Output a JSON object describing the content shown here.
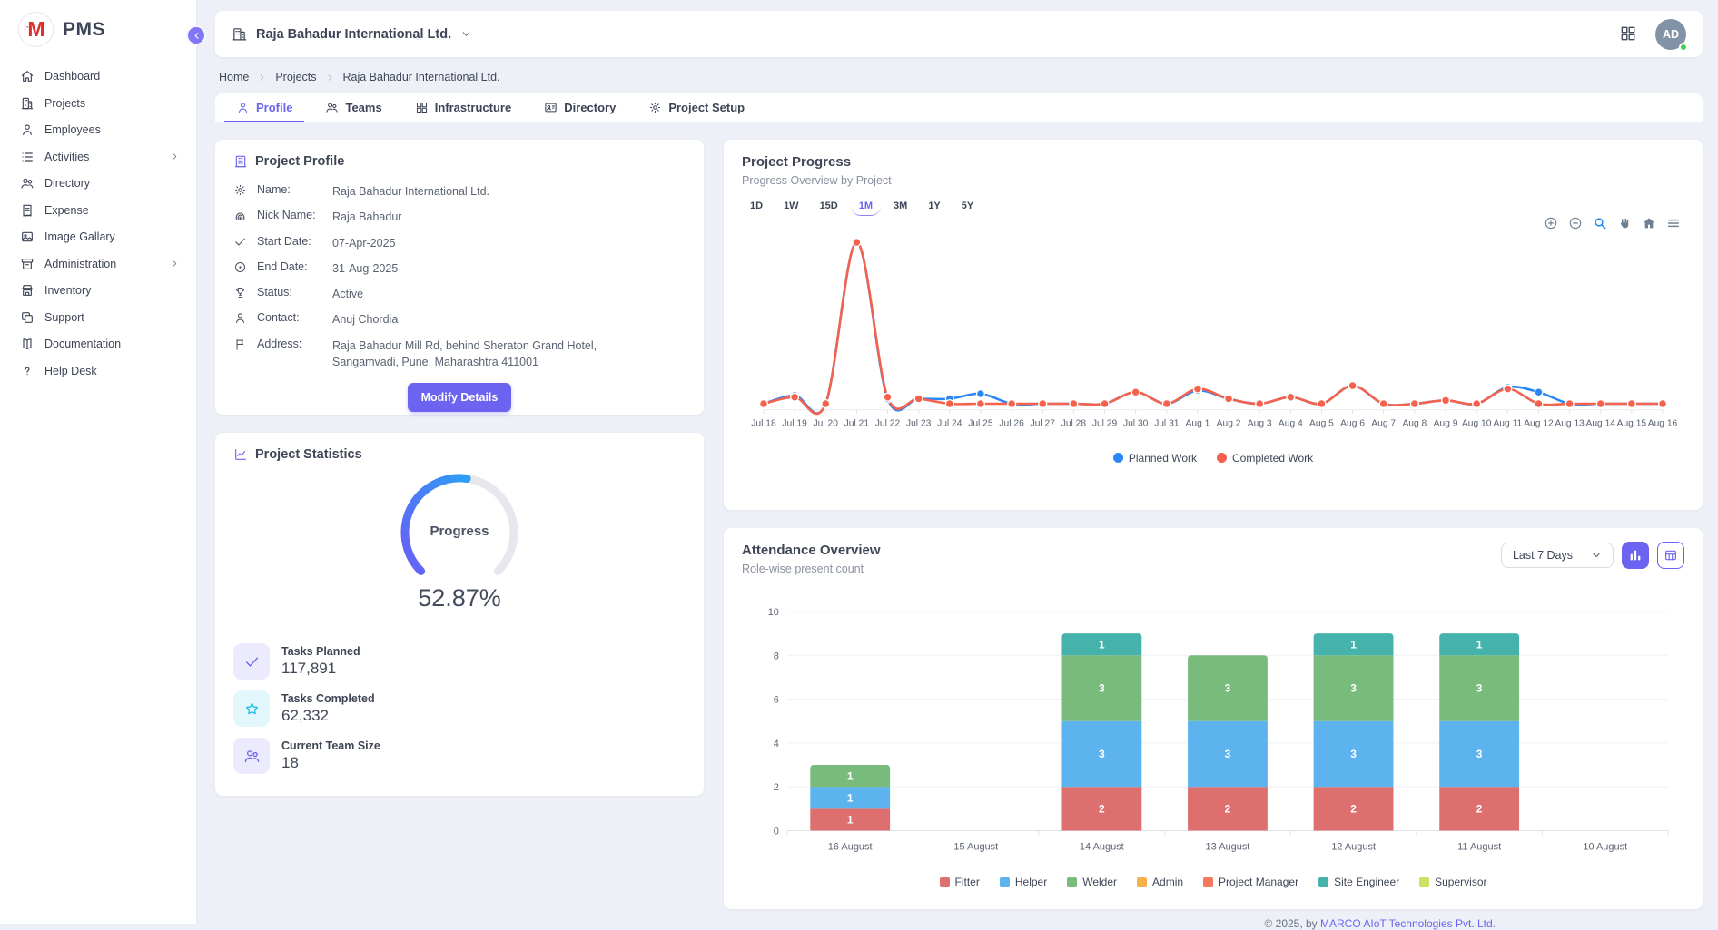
{
  "app": {
    "logo_text": "PMS",
    "footer_prefix": "© 2025, by ",
    "footer_link": "MARCO AIoT Technologies Pvt. Ltd."
  },
  "header": {
    "project_selector": "Raja Bahadur International Ltd.",
    "avatar_initials": "AD"
  },
  "sidebar": {
    "items": [
      {
        "label": "Dashboard",
        "icon": "home",
        "has_children": false
      },
      {
        "label": "Projects",
        "icon": "building",
        "has_children": false
      },
      {
        "label": "Employees",
        "icon": "user",
        "has_children": false
      },
      {
        "label": "Activities",
        "icon": "list",
        "has_children": true
      },
      {
        "label": "Directory",
        "icon": "users",
        "has_children": false
      },
      {
        "label": "Expense",
        "icon": "receipt",
        "has_children": false
      },
      {
        "label": "Image Gallary",
        "icon": "image",
        "has_children": false
      },
      {
        "label": "Administration",
        "icon": "archive",
        "has_children": true
      },
      {
        "label": "Inventory",
        "icon": "store",
        "has_children": false
      },
      {
        "label": "Support",
        "icon": "copy",
        "has_children": false
      },
      {
        "label": "Documentation",
        "icon": "book",
        "has_children": false
      },
      {
        "label": "Help Desk",
        "icon": "help",
        "has_children": false
      }
    ]
  },
  "breadcrumb": [
    "Home",
    "Projects",
    "Raja Bahadur International Ltd."
  ],
  "tabs": [
    {
      "label": "Profile",
      "icon": "user",
      "active": true
    },
    {
      "label": "Teams",
      "icon": "users",
      "active": false
    },
    {
      "label": "Infrastructure",
      "icon": "grid4",
      "active": false
    },
    {
      "label": "Directory",
      "icon": "contact-card",
      "active": false
    },
    {
      "label": "Project Setup",
      "icon": "gear",
      "active": false
    }
  ],
  "profile_card": {
    "title": "Project Profile",
    "fields": [
      {
        "icon": "gear",
        "label": "Name:",
        "value": "Raja Bahadur International Ltd."
      },
      {
        "icon": "fingerprint",
        "label": "Nick Name:",
        "value": "Raja Bahadur"
      },
      {
        "icon": "check",
        "label": "Start Date:",
        "value": "07-Apr-2025"
      },
      {
        "icon": "circle-dot",
        "label": "End Date:",
        "value": "31-Aug-2025"
      },
      {
        "icon": "trophy",
        "label": "Status:",
        "value": "Active"
      },
      {
        "icon": "user",
        "label": "Contact:",
        "value": "Anuj Chordia"
      },
      {
        "icon": "flag",
        "label": "Address:",
        "value": "Raja Bahadur Mill Rd, behind Sheraton Grand Hotel, Sangamvadi, Pune, Maharashtra 411001"
      }
    ],
    "button_label": "Modify Details"
  },
  "stats_card": {
    "title": "Project Statistics",
    "gauge": {
      "label": "Progress",
      "value_text": "52.87%",
      "percent": 52.87,
      "color_start": "#6a5ef5",
      "color_end": "#2e9df5",
      "track_color": "#e6e8ee"
    },
    "stats": [
      {
        "icon": "check",
        "tint": "purple",
        "label": "Tasks Planned",
        "value": "117,891"
      },
      {
        "icon": "star",
        "tint": "cyan",
        "label": "Tasks Completed",
        "value": "62,332"
      },
      {
        "icon": "users",
        "tint": "purple",
        "label": "Current Team Size",
        "value": "18"
      }
    ]
  },
  "progress_card": {
    "title": "Project Progress",
    "subtitle": "Progress Overview by Project",
    "ranges": [
      "1D",
      "1W",
      "15D",
      "1M",
      "3M",
      "1Y",
      "5Y"
    ],
    "active_range": "1M",
    "toolbar_icons": [
      "zoom-in",
      "zoom-out",
      "selection-zoom",
      "pan",
      "home",
      "menu"
    ]
  },
  "attendance_card": {
    "title": "Attendance Overview",
    "subtitle": "Role-wise present count",
    "filter_value": "Last 7 Days",
    "view_toggles": [
      "bar-chart",
      "table"
    ]
  },
  "chart_data": [
    {
      "id": "project-progress",
      "type": "line",
      "title": "Project Progress",
      "subtitle": "Progress Overview by Project",
      "x": [
        "Jul 18",
        "Jul 19",
        "Jul 20",
        "Jul 21",
        "Jul 22",
        "Jul 23",
        "Jul 24",
        "Jul 25",
        "Jul 26",
        "Jul 27",
        "Jul 28",
        "Jul 29",
        "Jul 30",
        "Jul 31",
        "Aug 1",
        "Aug 2",
        "Aug 3",
        "Aug 4",
        "Aug 5",
        "Aug 6",
        "Aug 7",
        "Aug 8",
        "Aug 9",
        "Aug 10",
        "Aug 11",
        "Aug 12",
        "Aug 13",
        "Aug 14",
        "Aug 15",
        "Aug 16"
      ],
      "series": [
        {
          "name": "Planned Work",
          "color": "#2b87f5",
          "values": [
            2,
            7,
            2,
            100,
            5,
            5,
            5,
            8,
            2,
            2,
            2,
            2,
            9,
            2,
            10,
            5,
            2,
            6,
            2,
            13,
            2,
            2,
            4,
            2,
            12,
            9,
            2,
            2,
            2,
            2
          ]
        },
        {
          "name": "Completed Work",
          "color": "#f4624d",
          "values": [
            2,
            6,
            2,
            100,
            6,
            5,
            2,
            2,
            2,
            2,
            2,
            2,
            9,
            2,
            11,
            5,
            2,
            6,
            2,
            13,
            2,
            2,
            4,
            2,
            11,
            2,
            2,
            2,
            2,
            2
          ]
        }
      ],
      "ylim": [
        0,
        105
      ],
      "grid": false,
      "legend_position": "bottom"
    },
    {
      "id": "attendance-overview",
      "type": "bar",
      "stacked": true,
      "title": "Attendance Overview",
      "subtitle": "Role-wise present count",
      "categories": [
        "16 August",
        "15 August",
        "14 August",
        "13 August",
        "12 August",
        "11 August",
        "10 August"
      ],
      "series": [
        {
          "name": "Fitter",
          "color": "#dd6f6f",
          "values": [
            1,
            0,
            2,
            2,
            2,
            2,
            0
          ]
        },
        {
          "name": "Helper",
          "color": "#5cb3ee",
          "values": [
            1,
            0,
            3,
            3,
            3,
            3,
            0
          ]
        },
        {
          "name": "Welder",
          "color": "#79bb7d",
          "values": [
            1,
            0,
            3,
            3,
            3,
            3,
            0
          ]
        },
        {
          "name": "Admin",
          "color": "#f8b24c",
          "values": [
            0,
            0,
            0,
            0,
            0,
            0,
            0
          ]
        },
        {
          "name": "Project Manager",
          "color": "#f4795a",
          "values": [
            0,
            0,
            0,
            0,
            0,
            0,
            0
          ]
        },
        {
          "name": "Site Engineer",
          "color": "#45b3ab",
          "values": [
            0,
            0,
            1,
            0,
            1,
            1,
            0
          ]
        },
        {
          "name": "Supervisor",
          "color": "#cfe164",
          "values": [
            0,
            0,
            0,
            0,
            0,
            0,
            0
          ]
        }
      ],
      "ylim": [
        0,
        10
      ],
      "yticks": [
        0,
        2,
        4,
        6,
        8,
        10
      ],
      "grid": true,
      "legend_position": "bottom"
    }
  ],
  "colors": {
    "accent": "#6c63f1",
    "background": "#eef0f7",
    "card": "#ffffff",
    "text_dark": "#3d4456",
    "text_muted": "#8a91a0",
    "avatar_bg": "#8293a7",
    "status_online": "#3fd24f",
    "planned_line": "#2b87f5",
    "completed_line": "#f4624d"
  }
}
